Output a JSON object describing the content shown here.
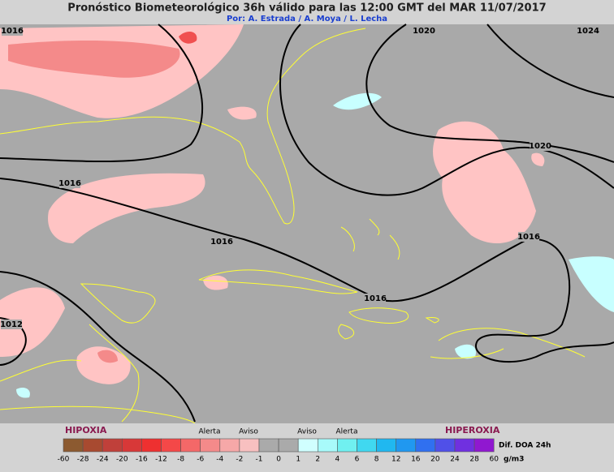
{
  "header": {
    "title": "Pronóstico Biometeorológico 36h  válido para las 12:00 GMT del MAR 11/07/2017",
    "subtitle": "Por: A. Estrada / A. Moya / L. Lecha"
  },
  "isobar_labels": [
    "1016",
    "1020",
    "1024",
    "1016",
    "1020",
    "1016",
    "1016",
    "1016",
    "1012"
  ],
  "legend": {
    "hypoxia": "HIPOXIA",
    "hyperoxia": "HIPEROXIA",
    "marks": [
      "Alerta",
      "Aviso",
      "Aviso",
      "Alerta"
    ],
    "unit_title": "Dif. DOA 24h",
    "unit": "g/m3",
    "values": [
      "-60",
      "-28",
      "-24",
      "-20",
      "-16",
      "-12",
      "-8",
      "-6",
      "-4",
      "-2",
      "-1",
      "0",
      "1",
      "2",
      "4",
      "6",
      "8",
      "12",
      "16",
      "20",
      "24",
      "28",
      "60"
    ],
    "colors": [
      "#8c5a30",
      "#a84a30",
      "#c0403a",
      "#d83838",
      "#ee3030",
      "#f44848",
      "#f46868",
      "#f48a8a",
      "#f6a8a8",
      "#f8c0c0",
      "#aaaaaa",
      "#aaaaaa",
      "#d0ffff",
      "#a8fafa",
      "#70f0f0",
      "#40d8f0",
      "#20b8f0",
      "#2098f0",
      "#3070f0",
      "#5050e8",
      "#7030e0",
      "#9018d0"
    ]
  }
}
